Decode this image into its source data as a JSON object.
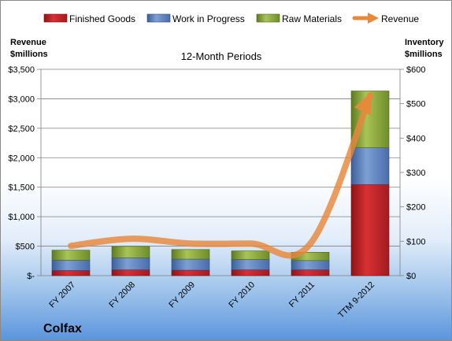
{
  "company": "Colfax",
  "chart_data": {
    "type": "bar",
    "subtitle": "12-Month Periods",
    "categories": [
      "FY 2007",
      "FY 2008",
      "FY 2009",
      "FY 2010",
      "FY 2011",
      "TTM 9-2012"
    ],
    "left_axis": {
      "title_line1": "Revenue",
      "title_line2": "$millions",
      "range": [
        0,
        3500
      ],
      "ticks": [
        0,
        500,
        1000,
        1500,
        2000,
        2500,
        3000,
        3500
      ],
      "tick_labels": [
        "$-",
        "$500",
        "$1,000",
        "$1,500",
        "$2,000",
        "$2,500",
        "$3,000",
        "$3,500"
      ]
    },
    "right_axis": {
      "title_line1": "Inventory",
      "title_line2": "$millions",
      "range": [
        0,
        600
      ],
      "ticks": [
        0,
        100,
        200,
        300,
        400,
        500,
        600
      ],
      "tick_labels": [
        "$0",
        "$100",
        "$200",
        "$300",
        "$400",
        "$500",
        "$600"
      ]
    },
    "stacked": true,
    "series": [
      {
        "name": "Finished Goods",
        "axis": "right",
        "color": "#c0282b",
        "values": [
          15,
          17,
          16,
          17,
          17,
          265
        ]
      },
      {
        "name": "Work in Progress",
        "axis": "right",
        "color": "#5f83bd",
        "values": [
          30,
          35,
          32,
          30,
          27,
          107
        ]
      },
      {
        "name": "Raw Materials",
        "axis": "right",
        "color": "#8fae3c",
        "values": [
          29,
          33,
          28,
          25,
          24,
          165
        ]
      }
    ],
    "line_series": {
      "name": "Revenue",
      "axis": "left",
      "color": "#e8883a",
      "values": [
        505,
        625,
        545,
        545,
        540,
        3050
      ]
    },
    "legend_position": "top",
    "grid": true
  }
}
